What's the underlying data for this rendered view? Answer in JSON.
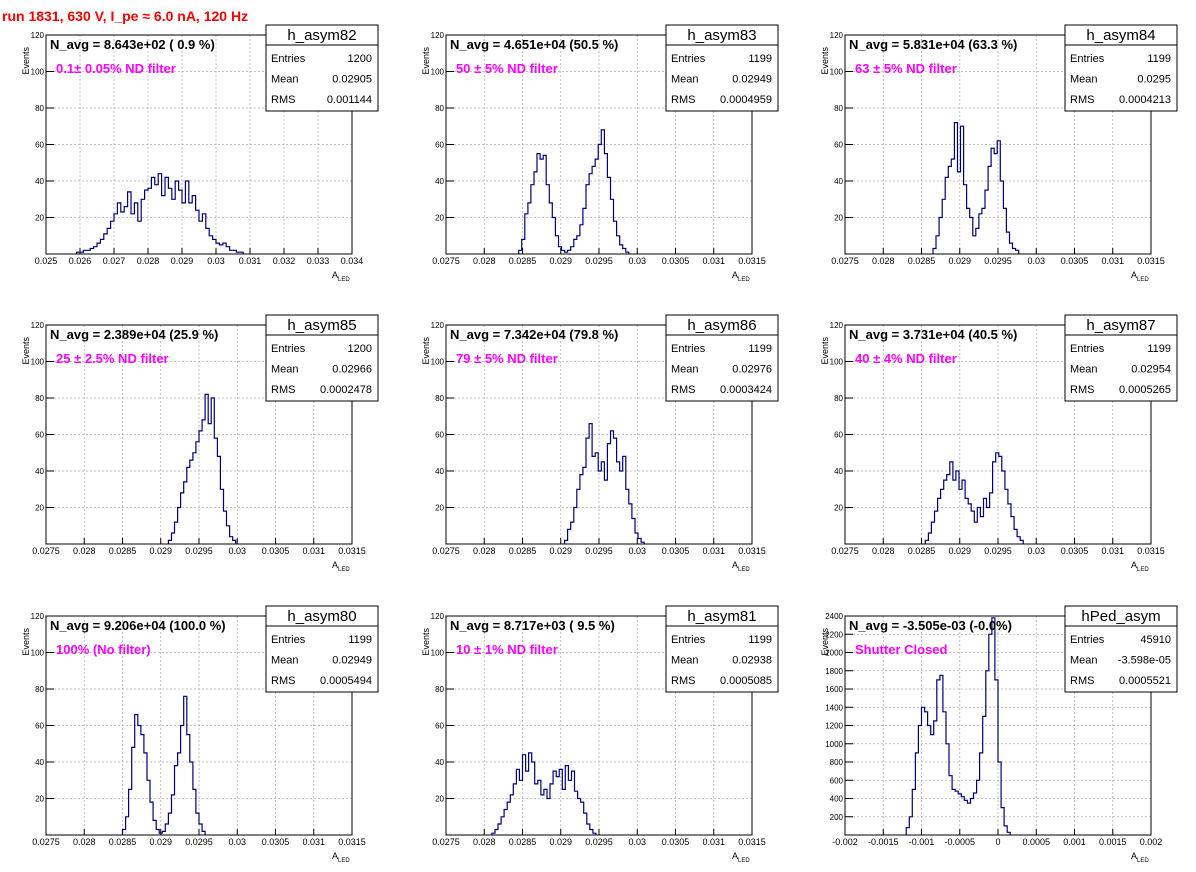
{
  "page_title": "run 1831,   630 V, I_pe ≈ 6.0 nA, 120 Hz",
  "colors": {
    "title": "#ff0000",
    "filter_label": "#ff00ff",
    "histogram": "#000080",
    "grid": "#b0b0b0"
  },
  "chart_data": [
    {
      "type": "bar",
      "name": "h_asym82",
      "title": "N_avg = 8.643e+02 ( 0.9 %)",
      "filter": "0.1± 0.05% ND filter",
      "xlabel": "A_LED",
      "ylabel": "Events",
      "xlim": [
        0.025,
        0.034
      ],
      "ylim": [
        0,
        120
      ],
      "xticks": [
        "0.025",
        "0.026",
        "0.027",
        "0.028",
        "0.029",
        "0.03",
        "0.031",
        "0.032",
        "0.033",
        "0.034"
      ],
      "yticks": [
        "20",
        "40",
        "60",
        "80",
        "100",
        "120"
      ],
      "stats": {
        "entries_label": "Entries",
        "entries": "1200",
        "mean_label": "Mean",
        "mean": "0.02905",
        "rms_label": "RMS",
        "rms": "0.001144"
      },
      "bins_start": 0.0259,
      "bin_width": 0.0001,
      "counts": [
        1,
        1,
        2,
        2,
        3,
        4,
        6,
        8,
        11,
        14,
        18,
        22,
        28,
        23,
        26,
        34,
        22,
        28,
        18,
        30,
        35,
        36,
        42,
        38,
        44,
        32,
        42,
        36,
        30,
        40,
        35,
        28,
        40,
        28,
        32,
        24,
        18,
        22,
        14,
        10,
        8,
        6,
        5,
        6,
        4,
        2,
        2,
        1,
        1
      ]
    },
    {
      "type": "bar",
      "name": "h_asym83",
      "title": "N_avg = 4.651e+04 (50.5 %)",
      "filter": "50 ± 5% ND filter",
      "xlabel": "A_LED",
      "ylabel": "Events",
      "xlim": [
        0.0275,
        0.0315
      ],
      "ylim": [
        0,
        120
      ],
      "xticks": [
        "0.0275",
        "0.028",
        "0.0285",
        "0.029",
        "0.0295",
        "0.03",
        "0.0305",
        "0.031",
        "0.0315"
      ],
      "yticks": [
        "20",
        "40",
        "60",
        "80",
        "100",
        "120"
      ],
      "stats": {
        "entries_label": "Entries",
        "entries": "1199",
        "mean_label": "Mean",
        "mean": "0.02949",
        "rms_label": "RMS",
        "rms": "0.0004959"
      },
      "bins_start": 0.02845,
      "bin_width": 4e-05,
      "counts": [
        2,
        8,
        22,
        28,
        38,
        45,
        55,
        52,
        54,
        38,
        28,
        20,
        10,
        4,
        2,
        1,
        2,
        4,
        8,
        10,
        16,
        25,
        38,
        44,
        48,
        52,
        60,
        68,
        55,
        42,
        30,
        18,
        10,
        5,
        3,
        1
      ]
    },
    {
      "type": "bar",
      "name": "h_asym84",
      "title": "N_avg = 5.831e+04 (63.3 %)",
      "filter": "63 ± 5% ND filter",
      "xlabel": "A_LED",
      "ylabel": "Events",
      "xlim": [
        0.0275,
        0.0315
      ],
      "ylim": [
        0,
        120
      ],
      "xticks": [
        "0.0275",
        "0.028",
        "0.0285",
        "0.029",
        "0.0295",
        "0.03",
        "0.0305",
        "0.031",
        "0.0315"
      ],
      "yticks": [
        "20",
        "40",
        "60",
        "80",
        "100",
        "120"
      ],
      "stats": {
        "entries_label": "Entries",
        "entries": "1199",
        "mean_label": "Mean",
        "mean": "0.0295",
        "rms_label": "RMS",
        "rms": "0.0004213"
      },
      "bins_start": 0.02865,
      "bin_width": 4e-05,
      "counts": [
        3,
        10,
        20,
        30,
        42,
        48,
        52,
        72,
        45,
        70,
        38,
        25,
        20,
        10,
        14,
        22,
        25,
        35,
        48,
        58,
        55,
        62,
        40,
        25,
        12,
        6,
        3,
        2
      ]
    },
    {
      "type": "bar",
      "name": "h_asym85",
      "title": "N_avg = 2.389e+04 (25.9 %)",
      "filter": "25 ± 2.5% ND filter",
      "xlabel": "A_LED",
      "ylabel": "Events",
      "xlim": [
        0.0275,
        0.0315
      ],
      "ylim": [
        0,
        120
      ],
      "xticks": [
        "0.0275",
        "0.028",
        "0.0285",
        "0.029",
        "0.0295",
        "0.03",
        "0.0305",
        "0.031",
        "0.0315"
      ],
      "yticks": [
        "20",
        "40",
        "60",
        "80",
        "100",
        "120"
      ],
      "stats": {
        "entries_label": "Entries",
        "entries": "1200",
        "mean_label": "Mean",
        "mean": "0.02966",
        "rms_label": "RMS",
        "rms": "0.0002478"
      },
      "bins_start": 0.0291,
      "bin_width": 4e-05,
      "counts": [
        2,
        6,
        12,
        20,
        28,
        34,
        42,
        46,
        50,
        56,
        62,
        68,
        82,
        66,
        80,
        58,
        48,
        30,
        18,
        10,
        4,
        2
      ]
    },
    {
      "type": "bar",
      "name": "h_asym86",
      "title": "N_avg = 7.342e+04 (79.8 %)",
      "filter": "79 ± 5% ND filter",
      "xlabel": "A_LED",
      "ylabel": "Events",
      "xlim": [
        0.0275,
        0.0315
      ],
      "ylim": [
        0,
        120
      ],
      "xticks": [
        "0.0275",
        "0.028",
        "0.0285",
        "0.029",
        "0.0295",
        "0.03",
        "0.0305",
        "0.031",
        "0.0315"
      ],
      "yticks": [
        "20",
        "40",
        "60",
        "80",
        "100",
        "120"
      ],
      "stats": {
        "entries_label": "Entries",
        "entries": "1199",
        "mean_label": "Mean",
        "mean": "0.02976",
        "rms_label": "RMS",
        "rms": "0.0003424"
      },
      "bins_start": 0.02905,
      "bin_width": 4e-05,
      "counts": [
        2,
        8,
        12,
        20,
        30,
        38,
        42,
        58,
        66,
        48,
        50,
        40,
        45,
        35,
        55,
        62,
        58,
        45,
        40,
        48,
        30,
        22,
        14,
        6,
        3,
        1
      ]
    },
    {
      "type": "bar",
      "name": "h_asym87",
      "title": "N_avg = 3.731e+04 (40.5 %)",
      "filter": "40 ± 4% ND filter",
      "xlabel": "A_LED",
      "ylabel": "Events",
      "xlim": [
        0.0275,
        0.0315
      ],
      "ylim": [
        0,
        120
      ],
      "xticks": [
        "0.0275",
        "0.028",
        "0.0285",
        "0.029",
        "0.0295",
        "0.03",
        "0.0305",
        "0.031",
        "0.0315"
      ],
      "yticks": [
        "20",
        "40",
        "60",
        "80",
        "100",
        "120"
      ],
      "stats": {
        "entries_label": "Entries",
        "entries": "1199",
        "mean_label": "Mean",
        "mean": "0.02954",
        "rms_label": "RMS",
        "rms": "0.0005265"
      },
      "bins_start": 0.02855,
      "bin_width": 4e-05,
      "counts": [
        2,
        6,
        12,
        18,
        25,
        30,
        35,
        38,
        45,
        35,
        40,
        30,
        35,
        25,
        22,
        18,
        12,
        20,
        15,
        25,
        20,
        28,
        45,
        50,
        48,
        40,
        30,
        22,
        15,
        8,
        4,
        2
      ]
    },
    {
      "type": "bar",
      "name": "h_asym80",
      "title": "N_avg = 9.206e+04 (100.0 %)",
      "filter": "100% (No filter)",
      "xlabel": "A_LED",
      "ylabel": "Events",
      "xlim": [
        0.0275,
        0.0315
      ],
      "ylim": [
        0,
        120
      ],
      "xticks": [
        "0.0275",
        "0.028",
        "0.0285",
        "0.029",
        "0.0295",
        "0.03",
        "0.0305",
        "0.031",
        "0.0315"
      ],
      "yticks": [
        "20",
        "40",
        "60",
        "80",
        "100",
        "120"
      ],
      "stats": {
        "entries_label": "Entries",
        "entries": "1199",
        "mean_label": "Mean",
        "mean": "0.02949",
        "rms_label": "RMS",
        "rms": "0.0005494"
      },
      "bins_start": 0.0285,
      "bin_width": 4e-05,
      "counts": [
        3,
        10,
        25,
        48,
        66,
        60,
        55,
        45,
        30,
        18,
        8,
        3,
        1,
        2,
        6,
        12,
        22,
        38,
        45,
        60,
        76,
        55,
        40,
        25,
        12,
        6,
        2
      ]
    },
    {
      "type": "bar",
      "name": "h_asym81",
      "title": "N_avg = 8.717e+03 ( 9.5 %)",
      "filter": "10 ± 1% ND filter",
      "xlabel": "A_LED",
      "ylabel": "Events",
      "xlim": [
        0.0275,
        0.0315
      ],
      "ylim": [
        0,
        120
      ],
      "xticks": [
        "0.0275",
        "0.028",
        "0.0285",
        "0.029",
        "0.0295",
        "0.03",
        "0.0305",
        "0.031",
        "0.0315"
      ],
      "yticks": [
        "20",
        "40",
        "60",
        "80",
        "100",
        "120"
      ],
      "stats": {
        "entries_label": "Entries",
        "entries": "1199",
        "mean_label": "Mean",
        "mean": "0.02938",
        "rms_label": "RMS",
        "rms": "0.0005085"
      },
      "bins_start": 0.0281,
      "bin_width": 4e-05,
      "counts": [
        1,
        3,
        6,
        10,
        14,
        18,
        22,
        28,
        36,
        30,
        44,
        35,
        45,
        40,
        28,
        30,
        22,
        25,
        20,
        28,
        35,
        32,
        36,
        25,
        38,
        30,
        35,
        24,
        20,
        18,
        12,
        6,
        3,
        1
      ]
    },
    {
      "type": "bar",
      "name": "hPed_asym",
      "title": "N_avg = -3.505e-03 (-0.0%)",
      "filter": "Shutter Closed",
      "xlabel": "A_LED",
      "ylabel": "Events",
      "xlim": [
        -0.002,
        0.002
      ],
      "ylim": [
        0,
        2400
      ],
      "xticks": [
        "-0.002",
        "-0.0015",
        "-0.001",
        "-0.0005",
        "0",
        "0.0005",
        "0.001",
        "0.0015",
        "0.002"
      ],
      "yticks": [
        "200",
        "400",
        "600",
        "800",
        "1000",
        "1200",
        "1400",
        "1600",
        "1800",
        "2000",
        "2200",
        "2400"
      ],
      "stats": {
        "entries_label": "Entries",
        "entries": "45910",
        "mean_label": "Mean",
        "mean": "-3.598e-05",
        "rms_label": "RMS",
        "rms": "0.0005521"
      },
      "bins_start": -0.0012,
      "bin_width": 4e-05,
      "counts": [
        80,
        200,
        500,
        900,
        1200,
        1400,
        1350,
        1200,
        1100,
        1250,
        1700,
        1750,
        1350,
        1000,
        650,
        500,
        480,
        450,
        420,
        380,
        350,
        400,
        460,
        600,
        900,
        1300,
        1800,
        2200,
        2380,
        1700,
        800,
        300,
        100,
        30
      ]
    }
  ]
}
